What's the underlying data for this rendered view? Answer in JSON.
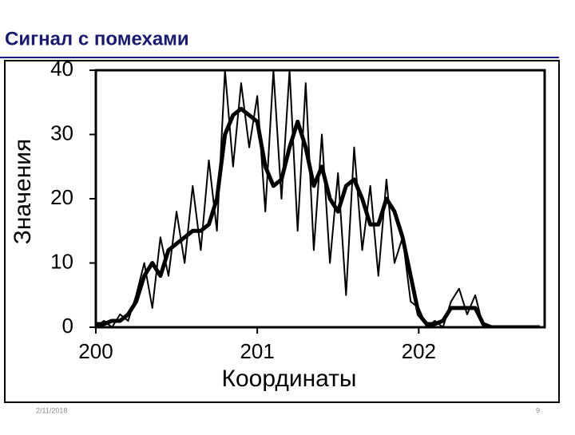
{
  "title": "Сигнал с помехами",
  "footer": {
    "date": "2/11/2018",
    "page": "9"
  },
  "chart_data": {
    "type": "line",
    "ylabel": "Значения",
    "xlabel": "Координаты",
    "x": [
      200,
      200.05,
      200.1,
      200.15,
      200.2,
      200.25,
      200.3,
      200.35,
      200.4,
      200.45,
      200.5,
      200.55,
      200.6,
      200.65,
      200.7,
      200.75,
      200.8,
      200.85,
      200.9,
      200.95,
      201,
      201.05,
      201.1,
      201.15,
      201.2,
      201.25,
      201.3,
      201.35,
      201.4,
      201.45,
      201.5,
      201.55,
      201.6,
      201.65,
      201.7,
      201.75,
      201.8,
      201.85,
      201.9,
      201.95,
      202,
      202.05,
      202.1,
      202.15,
      202.2,
      202.25,
      202.3,
      202.35,
      202.4,
      202.45,
      202.5,
      202.55,
      202.6,
      202.65,
      202.7,
      202.75
    ],
    "series": [
      {
        "color": "#000000",
        "values": [
          0,
          1,
          0,
          2,
          1,
          5,
          10,
          3,
          14,
          8,
          18,
          10,
          22,
          12,
          26,
          15,
          40,
          25,
          38,
          28,
          36,
          18,
          40,
          20,
          40,
          15,
          38,
          12,
          30,
          10,
          24,
          5,
          28,
          12,
          22,
          8,
          23,
          10,
          14,
          4,
          3,
          0,
          1,
          0,
          4,
          6,
          2,
          5,
          0,
          0,
          0,
          0,
          0,
          0,
          0,
          0
        ]
      },
      {
        "color": "#000000",
        "values": [
          0.5,
          0.5,
          1,
          1,
          2,
          4,
          8,
          10,
          8,
          12,
          13,
          14,
          15,
          15,
          16,
          20,
          30,
          33,
          34,
          33,
          32,
          25,
          22,
          23,
          28,
          32,
          28,
          22,
          25,
          20,
          18,
          22,
          23,
          20,
          16,
          16,
          20,
          18,
          14,
          8,
          2,
          0.5,
          0.5,
          1,
          3,
          3,
          3,
          3,
          0.5,
          0,
          0,
          0,
          0,
          0,
          0,
          0
        ]
      }
    ],
    "xlim": [
      200,
      202.78
    ],
    "xticks": [
      200,
      201,
      202
    ],
    "ylim": [
      0,
      40
    ],
    "yticks": [
      0,
      10,
      20,
      30,
      40
    ]
  }
}
